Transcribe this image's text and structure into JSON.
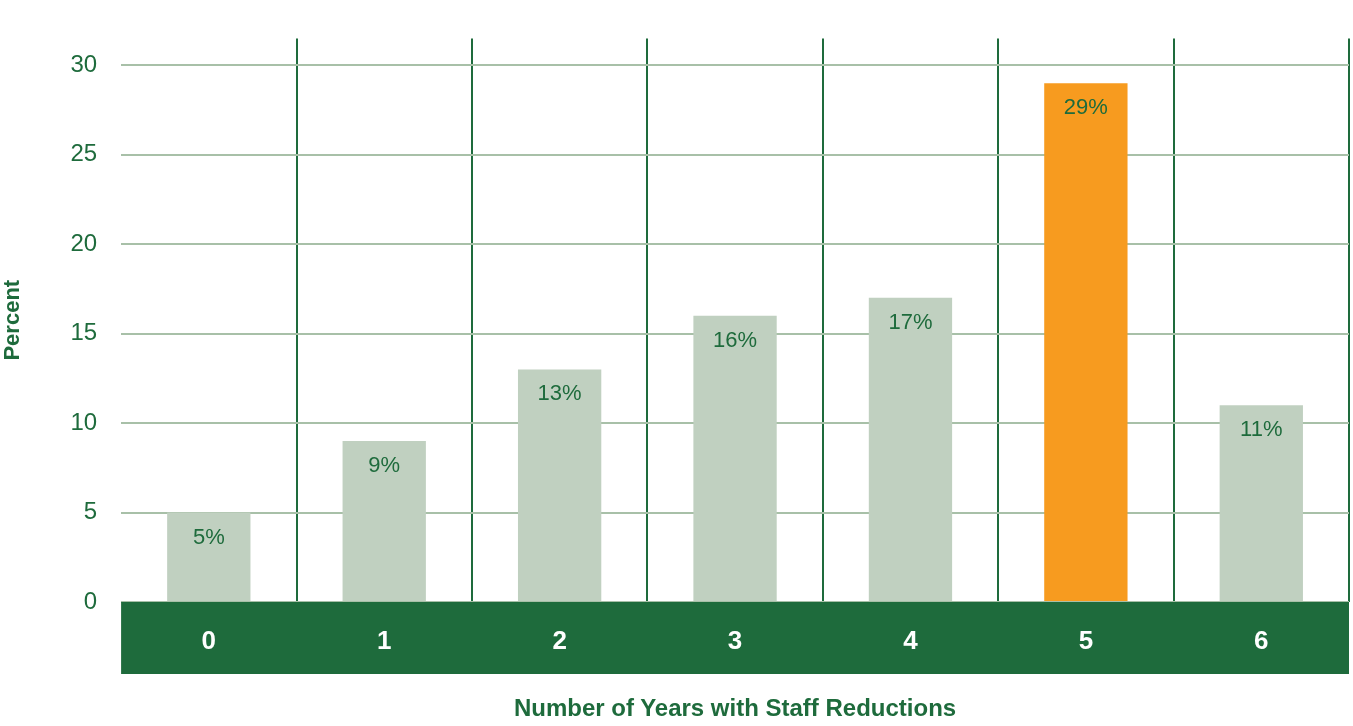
{
  "chart_data": {
    "type": "bar",
    "xlabel": "Number of Years with Staff Reductions",
    "ylabel": "Percent",
    "categories": [
      "0",
      "1",
      "2",
      "3",
      "4",
      "5",
      "6"
    ],
    "values": [
      5,
      9,
      13,
      16,
      17,
      29,
      11
    ],
    "colors": [
      "#c0d0c0",
      "#c0d0c0",
      "#c0d0c0",
      "#c0d0c0",
      "#c0d0c0",
      "#f79b1f",
      "#c0d0c0"
    ],
    "value_labels": [
      "5%",
      "9%",
      "13%",
      "16%",
      "17%",
      "29%",
      "11%"
    ],
    "ylim": [
      0,
      31.5
    ],
    "yticks": [
      0,
      5,
      10,
      15,
      20,
      25,
      30
    ],
    "grid": true,
    "legend": false
  }
}
